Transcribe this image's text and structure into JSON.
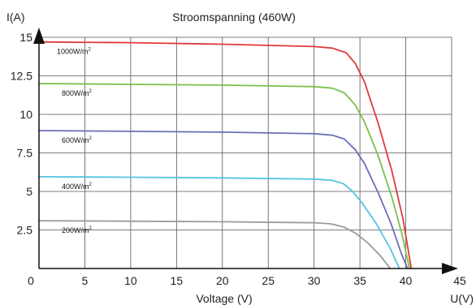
{
  "chart_data": {
    "type": "line",
    "title": "Stroomspanning (460W)",
    "xlabel": "Voltage (V)",
    "x_axis_end_label": "U(V)",
    "ylabel": "I(A)",
    "xlim": [
      0,
      45
    ],
    "ylim": [
      0,
      15
    ],
    "x_ticks": [
      "0",
      "5",
      "10",
      "15",
      "20",
      "25",
      "30",
      "35",
      "40",
      "45"
    ],
    "y_ticks": [
      "2.5",
      "5",
      "7.5",
      "10",
      "12.5",
      "15"
    ],
    "grid": true,
    "series": [
      {
        "name": "1000W/m²",
        "label_main": "1000W/m",
        "label_sup": "2",
        "color": "#e03a3a",
        "points": [
          [
            0,
            14.7
          ],
          [
            10,
            14.65
          ],
          [
            20,
            14.55
          ],
          [
            30,
            14.4
          ],
          [
            32,
            14.3
          ],
          [
            33.5,
            14.0
          ],
          [
            34.5,
            13.3
          ],
          [
            35.5,
            12.1
          ],
          [
            37,
            9.4
          ],
          [
            38.5,
            6.3
          ],
          [
            39.7,
            3.2
          ],
          [
            40.6,
            0
          ]
        ]
      },
      {
        "name": "800W/m²",
        "label_main": "800W/m",
        "label_sup": "2",
        "color": "#7cbf4a",
        "points": [
          [
            0,
            12.0
          ],
          [
            10,
            11.95
          ],
          [
            20,
            11.9
          ],
          [
            30,
            11.8
          ],
          [
            32,
            11.7
          ],
          [
            33.3,
            11.4
          ],
          [
            34.5,
            10.6
          ],
          [
            35.5,
            9.5
          ],
          [
            37,
            7.3
          ],
          [
            38.5,
            4.6
          ],
          [
            39.6,
            2.2
          ],
          [
            40.4,
            0
          ]
        ]
      },
      {
        "name": "600W/m²",
        "label_main": "600W/m",
        "label_sup": "2",
        "color": "#6b6fb4",
        "points": [
          [
            0,
            8.95
          ],
          [
            10,
            8.9
          ],
          [
            20,
            8.85
          ],
          [
            30,
            8.75
          ],
          [
            32,
            8.65
          ],
          [
            33.3,
            8.4
          ],
          [
            34.5,
            7.7
          ],
          [
            35.5,
            6.8
          ],
          [
            37,
            4.9
          ],
          [
            38.4,
            2.9
          ],
          [
            39.5,
            1.0
          ],
          [
            40.2,
            0
          ]
        ]
      },
      {
        "name": "400W/m²",
        "label_main": "400W/m",
        "label_sup": "2",
        "color": "#56c4e0",
        "points": [
          [
            0,
            5.95
          ],
          [
            10,
            5.92
          ],
          [
            20,
            5.88
          ],
          [
            30,
            5.8
          ],
          [
            32,
            5.72
          ],
          [
            33.2,
            5.5
          ],
          [
            34.2,
            5.0
          ],
          [
            35.3,
            4.2
          ],
          [
            36.8,
            2.9
          ],
          [
            38.3,
            1.3
          ],
          [
            39.3,
            0
          ]
        ]
      },
      {
        "name": "200W/m²",
        "label_main": "200W/m",
        "label_sup": "2",
        "color": "#9a9a9a",
        "points": [
          [
            0,
            3.1
          ],
          [
            10,
            3.07
          ],
          [
            20,
            3.03
          ],
          [
            30,
            2.97
          ],
          [
            31.8,
            2.9
          ],
          [
            33.2,
            2.7
          ],
          [
            34.5,
            2.3
          ],
          [
            35.8,
            1.7
          ],
          [
            37.2,
            0.85
          ],
          [
            38.3,
            0
          ]
        ]
      }
    ]
  }
}
